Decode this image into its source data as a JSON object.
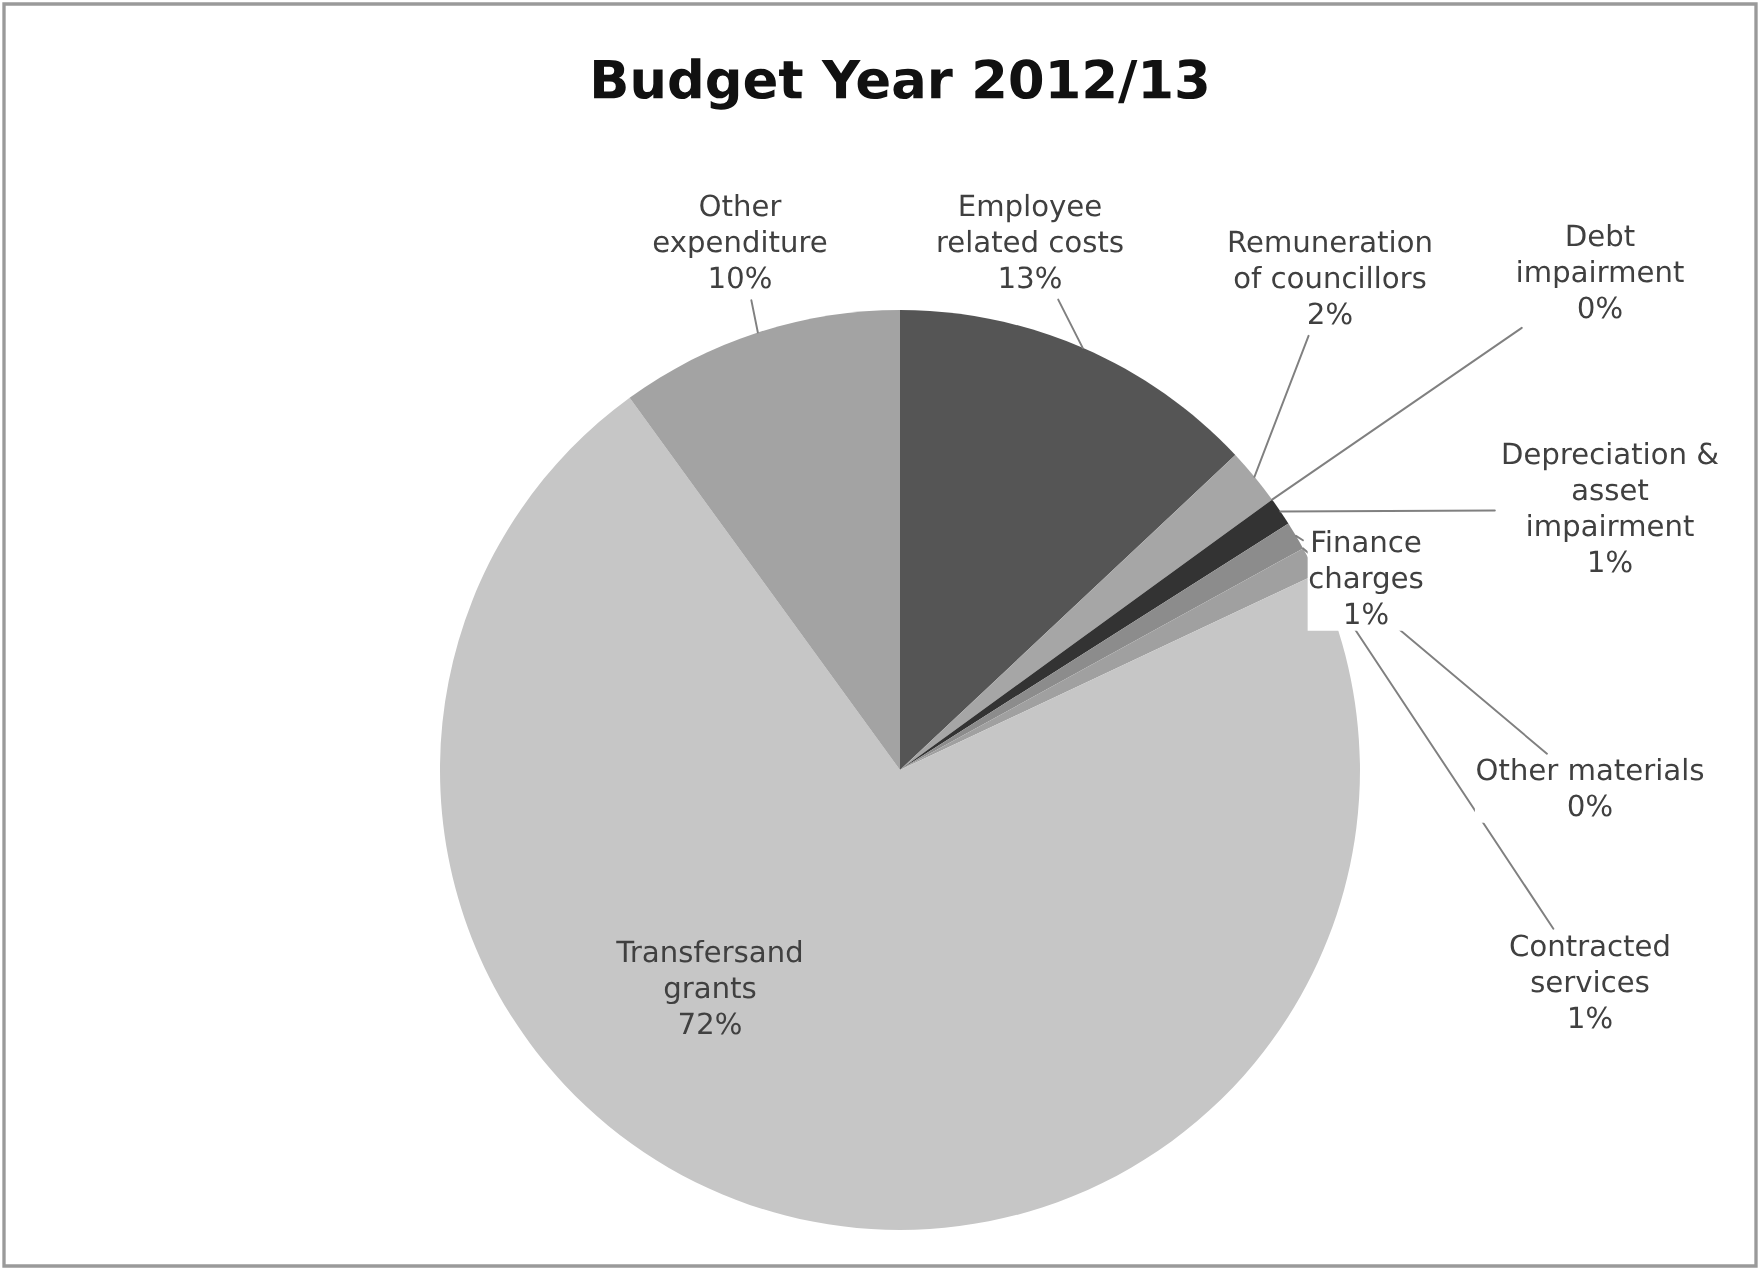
{
  "chart_data": {
    "type": "pie",
    "title": "Budget Year 2012/13",
    "categories": [
      "Employee\nrelated costs",
      "Remuneration\nof councillors",
      "Debt\nimpairment",
      "Depreciation &\nasset\nimpairment",
      "Finance\ncharges",
      "Other materials",
      "Contracted\nservices",
      "Transfersand\ngrants",
      "Other\nexpenditure"
    ],
    "values": [
      13,
      2,
      0,
      1,
      1,
      0,
      1,
      72,
      10
    ],
    "colors": [
      "#555555",
      "#a6a6a6",
      "#bdbdbd",
      "#333333",
      "#8c8c8c",
      "#b5b5b5",
      "#a0a0a0",
      "#c6c6c6",
      "#a3a3a3"
    ],
    "value_labels": [
      "13%",
      "2%",
      "0%",
      "1%",
      "1%",
      "0%",
      "1%",
      "72%",
      "10%"
    ]
  }
}
